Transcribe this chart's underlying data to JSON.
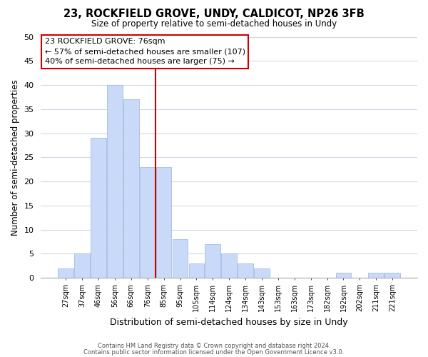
{
  "title": "23, ROCKFIELD GROVE, UNDY, CALDICOT, NP26 3FB",
  "subtitle": "Size of property relative to semi-detached houses in Undy",
  "xlabel": "Distribution of semi-detached houses by size in Undy",
  "ylabel": "Number of semi-detached properties",
  "categories": [
    "27sqm",
    "37sqm",
    "46sqm",
    "56sqm",
    "66sqm",
    "76sqm",
    "85sqm",
    "95sqm",
    "105sqm",
    "114sqm",
    "124sqm",
    "134sqm",
    "143sqm",
    "153sqm",
    "163sqm",
    "173sqm",
    "182sqm",
    "192sqm",
    "202sqm",
    "211sqm",
    "221sqm"
  ],
  "values": [
    2,
    5,
    29,
    40,
    37,
    23,
    23,
    8,
    3,
    7,
    5,
    3,
    2,
    0,
    0,
    0,
    0,
    1,
    0,
    1,
    1
  ],
  "bar_color": "#c9daf8",
  "bar_edge_color": "#a4bce8",
  "highlight_index": 5,
  "highlight_line_color": "#cc0000",
  "ylim": [
    0,
    50
  ],
  "yticks": [
    0,
    5,
    10,
    15,
    20,
    25,
    30,
    35,
    40,
    45,
    50
  ],
  "annotation_title": "23 ROCKFIELD GROVE: 76sqm",
  "annotation_line1": "← 57% of semi-detached houses are smaller (107)",
  "annotation_line2": "40% of semi-detached houses are larger (75) →",
  "annotation_box_color": "#ffffff",
  "annotation_box_edge": "#cc0000",
  "footer_line1": "Contains HM Land Registry data © Crown copyright and database right 2024.",
  "footer_line2": "Contains public sector information licensed under the Open Government Licence v3.0.",
  "background_color": "#ffffff",
  "grid_color": "#d0d8e8"
}
